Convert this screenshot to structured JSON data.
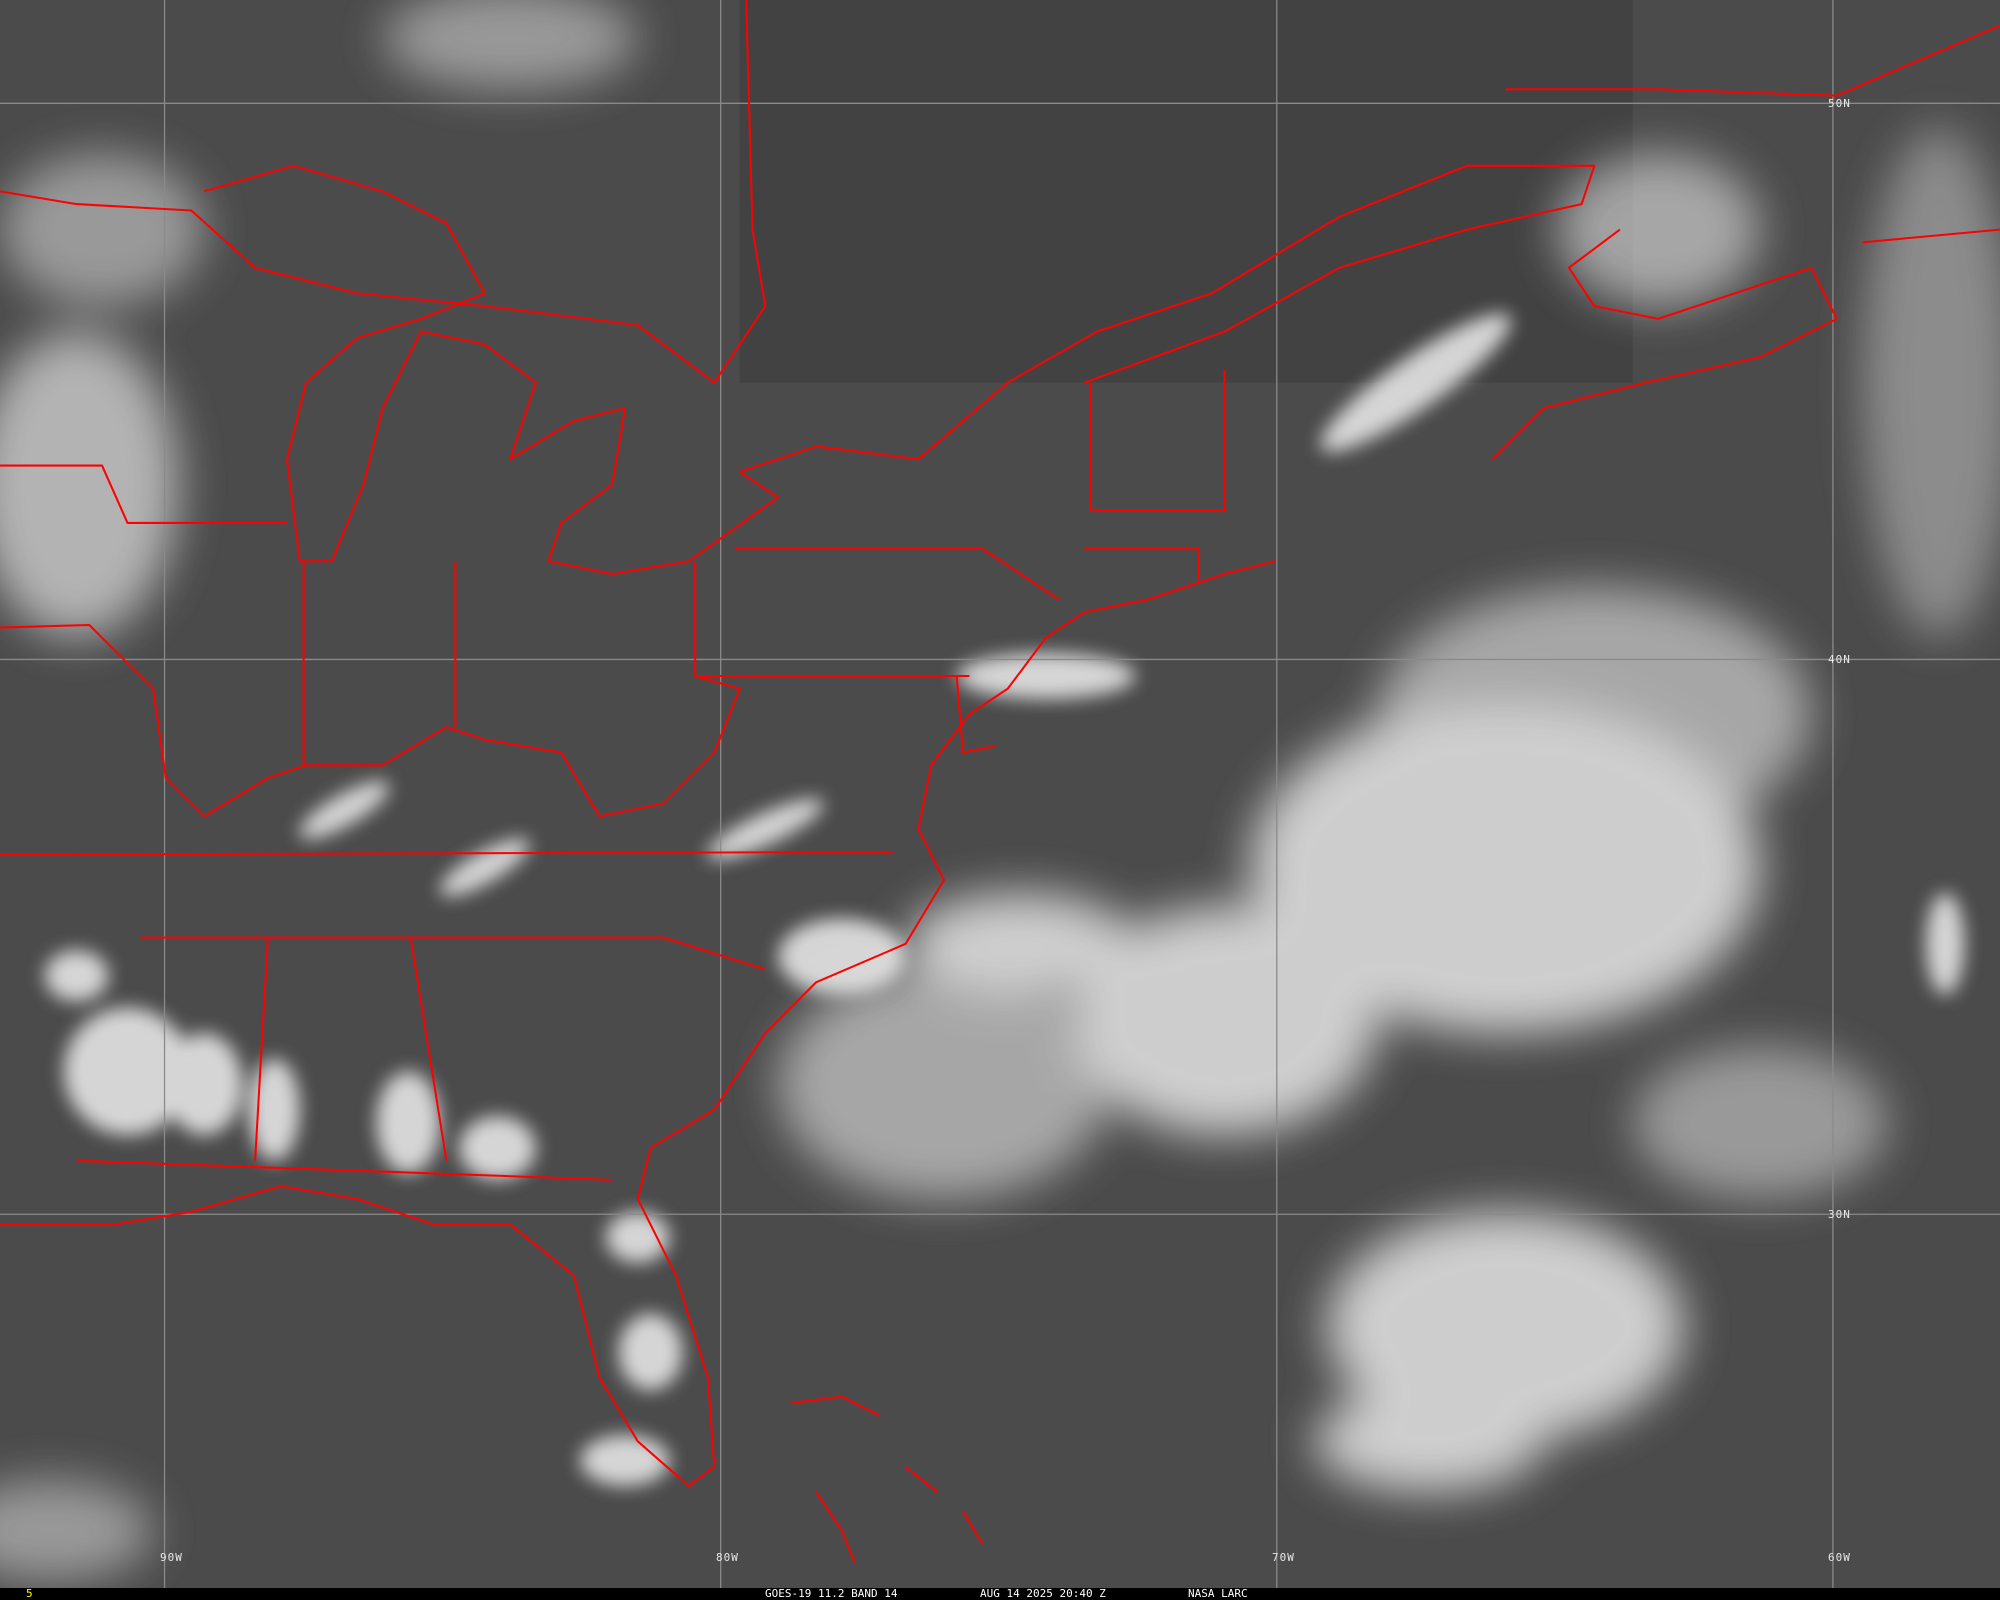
{
  "footer": {
    "frame_number": "5",
    "satellite_band": "GOES-19 11.2 BAND 14",
    "datetime": "AUG 14 2025 20:40 Z",
    "credit": "NASA LARC"
  },
  "grid": {
    "latitudes": [
      "50N",
      "40N",
      "30N"
    ],
    "longitudes": [
      "90W",
      "80W",
      "70W",
      "60W"
    ]
  },
  "colors": {
    "borders": "#ff0000",
    "background": "#4a4a4a",
    "clouds": "#f0f0f0",
    "gridlines": "#8a8a8a",
    "frame_number": "#ffff00"
  }
}
